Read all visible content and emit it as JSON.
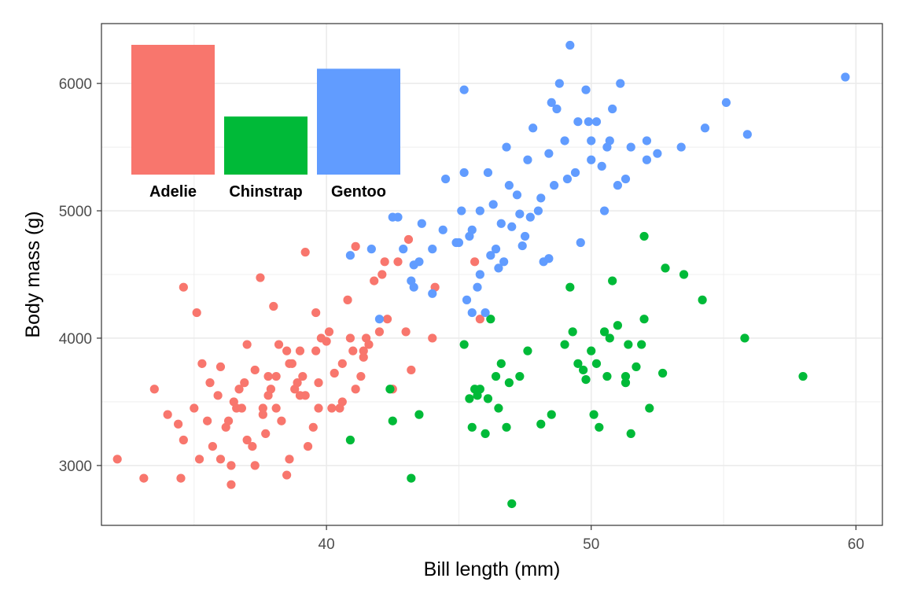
{
  "chart_data": [
    {
      "type": "scatter",
      "title": "",
      "xlabel": "Bill length (mm)",
      "ylabel": "Body mass (g)",
      "xlim": [
        31.5,
        61
      ],
      "ylim": [
        2530,
        6470
      ],
      "xticks": [
        40,
        50,
        60
      ],
      "yticks": [
        3000,
        4000,
        5000,
        6000
      ],
      "xtick_labels": [
        "40",
        "50",
        "60"
      ],
      "ytick_labels": [
        "3000",
        "4000",
        "5000",
        "6000"
      ],
      "grid": true,
      "legend": "none",
      "series": [
        {
          "name": "Adelie",
          "color": "#F8766D",
          "points": [
            [
              32.1,
              3050
            ],
            [
              33.1,
              2900
            ],
            [
              33.5,
              3600
            ],
            [
              34.0,
              3400
            ],
            [
              34.4,
              3325
            ],
            [
              34.5,
              2900
            ],
            [
              34.6,
              3200
            ],
            [
              34.6,
              4400
            ],
            [
              35.0,
              3450
            ],
            [
              35.1,
              4200
            ],
            [
              35.2,
              3050
            ],
            [
              35.3,
              3800
            ],
            [
              35.5,
              3350
            ],
            [
              35.7,
              3150
            ],
            [
              35.9,
              3550
            ],
            [
              36.0,
              3050
            ],
            [
              36.0,
              3775
            ],
            [
              36.2,
              3300
            ],
            [
              36.3,
              3350
            ],
            [
              36.4,
              2850
            ],
            [
              36.5,
              3500
            ],
            [
              36.6,
              3450
            ],
            [
              36.7,
              3600
            ],
            [
              36.8,
              3450
            ],
            [
              37.0,
              3950
            ],
            [
              37.2,
              3150
            ],
            [
              37.3,
              3750
            ],
            [
              37.5,
              4475
            ],
            [
              37.6,
              3450
            ],
            [
              37.7,
              3250
            ],
            [
              37.8,
              3700
            ],
            [
              37.9,
              3600
            ],
            [
              38.0,
              4250
            ],
            [
              38.1,
              3700
            ],
            [
              38.2,
              3950
            ],
            [
              38.3,
              3350
            ],
            [
              38.5,
              2925
            ],
            [
              38.6,
              3800
            ],
            [
              38.8,
              3600
            ],
            [
              39.0,
              3550
            ],
            [
              39.2,
              4675
            ],
            [
              39.3,
              3150
            ],
            [
              39.5,
              3300
            ],
            [
              39.6,
              3900
            ],
            [
              39.7,
              3450
            ],
            [
              39.8,
              4000
            ],
            [
              40.0,
              3975
            ],
            [
              40.1,
              4050
            ],
            [
              40.3,
              3725
            ],
            [
              40.5,
              3450
            ],
            [
              40.6,
              3800
            ],
            [
              40.8,
              4300
            ],
            [
              41.0,
              3900
            ],
            [
              41.1,
              4720
            ],
            [
              41.3,
              3700
            ],
            [
              41.4,
              3900
            ],
            [
              41.5,
              4000
            ],
            [
              41.6,
              3950
            ],
            [
              41.8,
              4450
            ],
            [
              42.0,
              4050
            ],
            [
              42.1,
              4500
            ],
            [
              42.2,
              4600
            ],
            [
              42.3,
              4150
            ],
            [
              42.5,
              3600
            ],
            [
              42.7,
              4600
            ],
            [
              43.0,
              4050
            ],
            [
              43.1,
              4775
            ],
            [
              43.2,
              3750
            ],
            [
              44.0,
              4000
            ],
            [
              44.1,
              4400
            ],
            [
              45.6,
              4600
            ],
            [
              45.8,
              4150
            ],
            [
              36.4,
              3000
            ],
            [
              36.9,
              3650
            ],
            [
              37.3,
              3000
            ],
            [
              37.8,
              3550
            ],
            [
              38.1,
              3450
            ],
            [
              38.6,
              3050
            ],
            [
              38.9,
              3650
            ],
            [
              39.2,
              3550
            ],
            [
              39.6,
              4200
            ],
            [
              40.2,
              3450
            ],
            [
              40.6,
              3500
            ],
            [
              40.9,
              4000
            ],
            [
              41.1,
              3600
            ],
            [
              41.4,
              3850
            ],
            [
              37.6,
              3400
            ],
            [
              38.7,
              3800
            ],
            [
              39.0,
              3900
            ],
            [
              39.7,
              3650
            ],
            [
              35.6,
              3650
            ],
            [
              37.0,
              3200
            ],
            [
              39.1,
              3700
            ],
            [
              38.5,
              3900
            ]
          ]
        },
        {
          "name": "Chinstrap",
          "color": "#00BA38",
          "points": [
            [
              40.9,
              3200
            ],
            [
              42.4,
              3600
            ],
            [
              42.5,
              3350
            ],
            [
              43.2,
              2900
            ],
            [
              43.5,
              3400
            ],
            [
              45.2,
              3950
            ],
            [
              45.4,
              3525
            ],
            [
              45.5,
              3300
            ],
            [
              45.6,
              3600
            ],
            [
              45.7,
              3550
            ],
            [
              46.0,
              3250
            ],
            [
              46.1,
              3525
            ],
            [
              46.4,
              3700
            ],
            [
              46.5,
              3450
            ],
            [
              46.6,
              3800
            ],
            [
              46.8,
              3300
            ],
            [
              47.0,
              2700
            ],
            [
              47.3,
              3700
            ],
            [
              47.6,
              3900
            ],
            [
              48.1,
              3325
            ],
            [
              48.5,
              3400
            ],
            [
              49.0,
              3950
            ],
            [
              49.2,
              4400
            ],
            [
              49.3,
              4050
            ],
            [
              49.5,
              3800
            ],
            [
              49.7,
              3750
            ],
            [
              49.8,
              3675
            ],
            [
              50.0,
              3900
            ],
            [
              50.1,
              3400
            ],
            [
              50.2,
              3800
            ],
            [
              50.3,
              3300
            ],
            [
              50.5,
              4050
            ],
            [
              50.7,
              4000
            ],
            [
              50.8,
              4450
            ],
            [
              51.0,
              4100
            ],
            [
              51.3,
              3650
            ],
            [
              51.4,
              3950
            ],
            [
              51.5,
              3250
            ],
            [
              51.7,
              3775
            ],
            [
              52.0,
              4150
            ],
            [
              52.2,
              3450
            ],
            [
              52.7,
              3725
            ],
            [
              52.8,
              4550
            ],
            [
              53.5,
              4500
            ],
            [
              54.2,
              4300
            ],
            [
              55.8,
              4000
            ],
            [
              58.0,
              3700
            ],
            [
              52.0,
              4800
            ],
            [
              46.2,
              4150
            ],
            [
              45.8,
              3600
            ],
            [
              46.9,
              3650
            ],
            [
              50.6,
              3700
            ],
            [
              51.3,
              3700
            ],
            [
              51.9,
              3950
            ]
          ]
        },
        {
          "name": "Gentoo",
          "color": "#619CFF",
          "points": [
            [
              40.9,
              4650
            ],
            [
              41.7,
              4700
            ],
            [
              42.0,
              4150
            ],
            [
              42.7,
              4950
            ],
            [
              42.9,
              4700
            ],
            [
              43.2,
              4450
            ],
            [
              43.3,
              4400
            ],
            [
              43.6,
              4900
            ],
            [
              44.0,
              4350
            ],
            [
              44.4,
              4850
            ],
            [
              45.0,
              4750
            ],
            [
              45.1,
              5000
            ],
            [
              45.2,
              5300
            ],
            [
              45.3,
              4300
            ],
            [
              45.4,
              4800
            ],
            [
              45.5,
              4200
            ],
            [
              45.7,
              4400
            ],
            [
              45.8,
              5000
            ],
            [
              46.1,
              5300
            ],
            [
              46.2,
              4650
            ],
            [
              46.4,
              4700
            ],
            [
              46.5,
              4550
            ],
            [
              46.6,
              4900
            ],
            [
              46.8,
              5500
            ],
            [
              47.0,
              4875
            ],
            [
              47.3,
              4975
            ],
            [
              47.5,
              4800
            ],
            [
              47.6,
              5400
            ],
            [
              47.8,
              5650
            ],
            [
              48.1,
              5100
            ],
            [
              48.2,
              4600
            ],
            [
              48.4,
              5450
            ],
            [
              48.5,
              5850
            ],
            [
              48.7,
              5800
            ],
            [
              49.0,
              5550
            ],
            [
              49.1,
              5250
            ],
            [
              49.2,
              6300
            ],
            [
              49.5,
              5700
            ],
            [
              49.8,
              5950
            ],
            [
              50.0,
              5400
            ],
            [
              50.2,
              5700
            ],
            [
              50.4,
              5350
            ],
            [
              50.5,
              5000
            ],
            [
              50.8,
              5800
            ],
            [
              51.1,
              6000
            ],
            [
              51.3,
              5250
            ],
            [
              51.5,
              5500
            ],
            [
              52.1,
              5550
            ],
            [
              52.5,
              5450
            ],
            [
              53.4,
              5500
            ],
            [
              54.3,
              5650
            ],
            [
              55.1,
              5850
            ],
            [
              55.9,
              5600
            ],
            [
              59.6,
              6050
            ],
            [
              45.2,
              5950
            ],
            [
              48.8,
              6000
            ],
            [
              44.5,
              5250
            ],
            [
              46.9,
              5200
            ],
            [
              47.2,
              5125
            ],
            [
              48.4,
              4625
            ],
            [
              49.6,
              4750
            ],
            [
              50.0,
              5550
            ],
            [
              45.5,
              4850
            ],
            [
              46.0,
              4200
            ],
            [
              43.5,
              4600
            ],
            [
              44.9,
              4750
            ],
            [
              47.7,
              4950
            ],
            [
              49.4,
              5300
            ],
            [
              50.7,
              5550
            ],
            [
              51.0,
              5200
            ],
            [
              52.1,
              5400
            ],
            [
              49.9,
              5700
            ],
            [
              50.6,
              5500
            ],
            [
              48.6,
              5200
            ],
            [
              47.4,
              4725
            ],
            [
              46.3,
              5050
            ],
            [
              45.8,
              4500
            ],
            [
              42.5,
              4950
            ],
            [
              43.3,
              4575
            ],
            [
              44.0,
              4700
            ],
            [
              46.7,
              4600
            ],
            [
              48.0,
              5000
            ]
          ]
        }
      ]
    },
    {
      "type": "bar",
      "title": "",
      "categories": [
        "Adelie",
        "Chinstrap",
        "Gentoo"
      ],
      "values": [
        152,
        68,
        124
      ],
      "colors": [
        "#F8766D",
        "#00BA38",
        "#619CFF"
      ],
      "ylim": [
        0,
        152
      ]
    }
  ]
}
